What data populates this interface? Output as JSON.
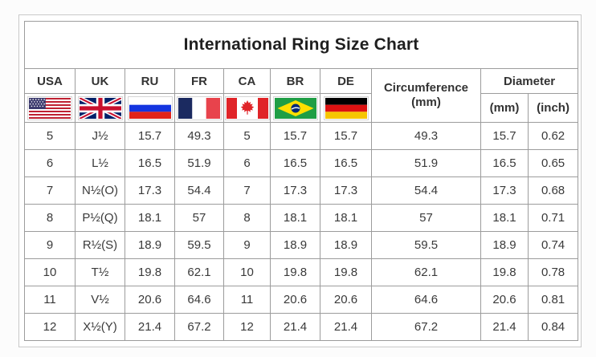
{
  "chart_data": {
    "type": "table",
    "title": "International Ring Size Chart",
    "columns": [
      "USA",
      "UK",
      "RU",
      "FR",
      "CA",
      "BR",
      "DE"
    ],
    "flag_icons": [
      "usa-flag-icon",
      "uk-flag-icon",
      "russia-flag-icon",
      "france-flag-icon",
      "canada-flag-icon",
      "brazil-flag-icon",
      "germany-flag-icon"
    ],
    "circumference_header": {
      "line1": "Circumference",
      "line2": "(mm)"
    },
    "diameter_header": {
      "label": "Diameter",
      "sub_mm": "(mm)",
      "sub_inch": "(inch)"
    },
    "rows": [
      {
        "usa": "5",
        "uk": "J½",
        "ru": "15.7",
        "fr": "49.3",
        "ca": "5",
        "br": "15.7",
        "de": "15.7",
        "circumference_mm": "49.3",
        "diameter_mm": "15.7",
        "diameter_inch": "0.62"
      },
      {
        "usa": "6",
        "uk": "L½",
        "ru": "16.5",
        "fr": "51.9",
        "ca": "6",
        "br": "16.5",
        "de": "16.5",
        "circumference_mm": "51.9",
        "diameter_mm": "16.5",
        "diameter_inch": "0.65"
      },
      {
        "usa": "7",
        "uk": "N½(O)",
        "ru": "17.3",
        "fr": "54.4",
        "ca": "7",
        "br": "17.3",
        "de": "17.3",
        "circumference_mm": "54.4",
        "diameter_mm": "17.3",
        "diameter_inch": "0.68"
      },
      {
        "usa": "8",
        "uk": "P½(Q)",
        "ru": "18.1",
        "fr": "57",
        "ca": "8",
        "br": "18.1",
        "de": "18.1",
        "circumference_mm": "57",
        "diameter_mm": "18.1",
        "diameter_inch": "0.71"
      },
      {
        "usa": "9",
        "uk": "R½(S)",
        "ru": "18.9",
        "fr": "59.5",
        "ca": "9",
        "br": "18.9",
        "de": "18.9",
        "circumference_mm": "59.5",
        "diameter_mm": "18.9",
        "diameter_inch": "0.74"
      },
      {
        "usa": "10",
        "uk": "T½",
        "ru": "19.8",
        "fr": "62.1",
        "ca": "10",
        "br": "19.8",
        "de": "19.8",
        "circumference_mm": "62.1",
        "diameter_mm": "19.8",
        "diameter_inch": "0.78"
      },
      {
        "usa": "11",
        "uk": "V½",
        "ru": "20.6",
        "fr": "64.6",
        "ca": "11",
        "br": "20.6",
        "de": "20.6",
        "circumference_mm": "64.6",
        "diameter_mm": "20.6",
        "diameter_inch": "0.81"
      },
      {
        "usa": "12",
        "uk": "X½(Y)",
        "ru": "21.4",
        "fr": "67.2",
        "ca": "12",
        "br": "21.4",
        "de": "21.4",
        "circumference_mm": "67.2",
        "diameter_mm": "21.4",
        "diameter_inch": "0.84"
      }
    ]
  },
  "colors": {
    "grid_border": "#9c9c9c",
    "outer_border": "#c9c9c9",
    "text": "#3a3a3a",
    "title_text": "#1f1f1f",
    "background": "#ffffff"
  }
}
